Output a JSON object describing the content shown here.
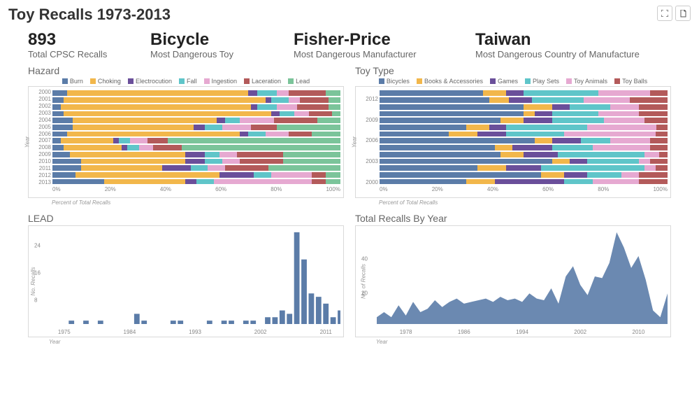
{
  "title": "Toy Recalls 1973-2013",
  "toolbar": {
    "expand_tip": "Expand",
    "export_tip": "Export"
  },
  "summary": [
    {
      "value": "893",
      "label": "Total CPSC Recalls"
    },
    {
      "value": "Bicycle",
      "label": "Most Dangerous Toy"
    },
    {
      "value": "Fisher-Price",
      "label": "Most Dangerous Manufacturer"
    },
    {
      "value": "Taiwan",
      "label": "Most Dangerous Country of Manufacture"
    }
  ],
  "colors": {
    "hazard": {
      "Burn": "#5b7ca8",
      "Choking": "#f2b74b",
      "Electrocution": "#6a4f9a",
      "Fall": "#5fc5c9",
      "Ingestion": "#e6a9d1",
      "Laceration": "#b35a5a",
      "Lead": "#7bc49a"
    },
    "toytype": {
      "Bicycles": "#5b7ca8",
      "Books & Accessories": "#f2b74b",
      "Games": "#6a4f9a",
      "Play Sets": "#5fc5c9",
      "Toy Animals": "#e6a9d1",
      "Toy Balls": "#b35a5a"
    },
    "bar_fill": "#5b7ca8",
    "area_fill": "#5b7ca8",
    "border": "#d9d9d9",
    "tick_text": "#888888",
    "panel_title": "#666666"
  },
  "hazard_chart": {
    "title": "Hazard",
    "type": "stacked-bar-100",
    "x_label": "Percent of Total Recalls",
    "y_label": "Year",
    "x_ticks": [
      "0%",
      "20%",
      "40%",
      "60%",
      "80%",
      "100%"
    ],
    "legend": [
      "Burn",
      "Choking",
      "Electrocution",
      "Fall",
      "Ingestion",
      "Laceration",
      "Lead"
    ],
    "rows": [
      {
        "year": "2000",
        "v": {
          "Burn": 5,
          "Choking": 63,
          "Electrocution": 3,
          "Fall": 7,
          "Ingestion": 4,
          "Laceration": 13,
          "Lead": 5
        }
      },
      {
        "year": "2001",
        "v": {
          "Burn": 4,
          "Choking": 70,
          "Electrocution": 2,
          "Fall": 6,
          "Ingestion": 4,
          "Laceration": 10,
          "Lead": 4
        }
      },
      {
        "year": "2002",
        "v": {
          "Burn": 3,
          "Choking": 66,
          "Electrocution": 2,
          "Fall": 7,
          "Ingestion": 7,
          "Laceration": 11,
          "Lead": 4
        }
      },
      {
        "year": "2003",
        "v": {
          "Burn": 4,
          "Choking": 72,
          "Electrocution": 3,
          "Fall": 5,
          "Ingestion": 5,
          "Laceration": 8,
          "Lead": 3
        }
      },
      {
        "year": "2004",
        "v": {
          "Burn": 7,
          "Choking": 50,
          "Electrocution": 3,
          "Fall": 5,
          "Ingestion": 12,
          "Laceration": 15,
          "Lead": 8
        }
      },
      {
        "year": "2005",
        "v": {
          "Burn": 7,
          "Choking": 42,
          "Electrocution": 4,
          "Fall": 6,
          "Ingestion": 10,
          "Laceration": 9,
          "Lead": 22
        }
      },
      {
        "year": "2006",
        "v": {
          "Burn": 5,
          "Choking": 60,
          "Electrocution": 3,
          "Fall": 6,
          "Ingestion": 8,
          "Laceration": 8,
          "Lead": 10
        }
      },
      {
        "year": "2007",
        "v": {
          "Burn": 3,
          "Choking": 18,
          "Electrocution": 2,
          "Fall": 4,
          "Ingestion": 6,
          "Laceration": 7,
          "Lead": 60
        }
      },
      {
        "year": "2008",
        "v": {
          "Burn": 4,
          "Choking": 20,
          "Electrocution": 2,
          "Fall": 4,
          "Ingestion": 5,
          "Laceration": 10,
          "Lead": 55
        }
      },
      {
        "year": "2009",
        "v": {
          "Burn": 6,
          "Choking": 40,
          "Electrocution": 7,
          "Fall": 5,
          "Ingestion": 6,
          "Laceration": 16,
          "Lead": 20
        }
      },
      {
        "year": "2010",
        "v": {
          "Burn": 10,
          "Choking": 36,
          "Electrocution": 7,
          "Fall": 6,
          "Ingestion": 6,
          "Laceration": 15,
          "Lead": 20
        }
      },
      {
        "year": "2011",
        "v": {
          "Burn": 10,
          "Choking": 28,
          "Electrocution": 10,
          "Fall": 6,
          "Ingestion": 6,
          "Laceration": 15,
          "Lead": 25
        }
      },
      {
        "year": "2012",
        "v": {
          "Burn": 8,
          "Choking": 50,
          "Electrocution": 12,
          "Fall": 6,
          "Ingestion": 14,
          "Laceration": 5,
          "Lead": 5
        }
      },
      {
        "year": "2013",
        "v": {
          "Burn": 18,
          "Choking": 28,
          "Electrocution": 4,
          "Fall": 6,
          "Ingestion": 34,
          "Laceration": 5,
          "Lead": 5
        }
      }
    ]
  },
  "toytype_chart": {
    "title": "Toy Type",
    "type": "stacked-bar-100",
    "x_label": "Percent of Total Recalls",
    "y_label": "Year",
    "x_ticks": [
      "0%",
      "20%",
      "40%",
      "60%",
      "80%",
      "100%"
    ],
    "legend": [
      "Bicycles",
      "Books & Accessories",
      "Games",
      "Play Sets",
      "Toy Animals",
      "Toy Balls"
    ],
    "rows": [
      {
        "year": "2013",
        "v": {
          "Bicycles": 36,
          "Books & Accessories": 8,
          "Games": 6,
          "Play Sets": 26,
          "Toy Animals": 18,
          "Toy Balls": 6
        }
      },
      {
        "year": "2012",
        "v": {
          "Bicycles": 38,
          "Books & Accessories": 7,
          "Games": 8,
          "Play Sets": 18,
          "Toy Animals": 16,
          "Toy Balls": 13
        }
      },
      {
        "year": "2011",
        "v": {
          "Bicycles": 50,
          "Books & Accessories": 10,
          "Games": 6,
          "Play Sets": 14,
          "Toy Animals": 10,
          "Toy Balls": 10
        }
      },
      {
        "year": "2010",
        "v": {
          "Bicycles": 50,
          "Books & Accessories": 4,
          "Games": 6,
          "Play Sets": 16,
          "Toy Animals": 14,
          "Toy Balls": 10
        }
      },
      {
        "year": "2009",
        "v": {
          "Bicycles": 42,
          "Books & Accessories": 8,
          "Games": 10,
          "Play Sets": 18,
          "Toy Animals": 14,
          "Toy Balls": 8
        }
      },
      {
        "year": "2008",
        "v": {
          "Bicycles": 30,
          "Books & Accessories": 8,
          "Games": 6,
          "Play Sets": 28,
          "Toy Animals": 24,
          "Toy Balls": 4
        }
      },
      {
        "year": "2007",
        "v": {
          "Bicycles": 24,
          "Books & Accessories": 10,
          "Games": 10,
          "Play Sets": 20,
          "Toy Animals": 32,
          "Toy Balls": 4
        }
      },
      {
        "year": "2006",
        "v": {
          "Bicycles": 54,
          "Books & Accessories": 6,
          "Games": 10,
          "Play Sets": 10,
          "Toy Animals": 14,
          "Toy Balls": 6
        }
      },
      {
        "year": "2005",
        "v": {
          "Bicycles": 40,
          "Books & Accessories": 6,
          "Games": 14,
          "Play Sets": 14,
          "Toy Animals": 20,
          "Toy Balls": 6
        }
      },
      {
        "year": "2004",
        "v": {
          "Bicycles": 42,
          "Books & Accessories": 8,
          "Games": 12,
          "Play Sets": 30,
          "Toy Animals": 5,
          "Toy Balls": 3
        }
      },
      {
        "year": "2003",
        "v": {
          "Bicycles": 60,
          "Books & Accessories": 6,
          "Games": 6,
          "Play Sets": 18,
          "Toy Animals": 4,
          "Toy Balls": 6
        }
      },
      {
        "year": "2002",
        "v": {
          "Bicycles": 34,
          "Books & Accessories": 10,
          "Games": 12,
          "Play Sets": 36,
          "Toy Animals": 4,
          "Toy Balls": 4
        }
      },
      {
        "year": "2001",
        "v": {
          "Bicycles": 56,
          "Books & Accessories": 8,
          "Games": 8,
          "Play Sets": 12,
          "Toy Animals": 6,
          "Toy Balls": 10
        }
      },
      {
        "year": "2000",
        "v": {
          "Bicycles": 30,
          "Books & Accessories": 10,
          "Games": 24,
          "Play Sets": 10,
          "Toy Animals": 16,
          "Toy Balls": 10
        }
      }
    ],
    "visible_row_labels": [
      "2012",
      "2009",
      "2006",
      "2003",
      "2000"
    ]
  },
  "lead_chart": {
    "title": "LEAD",
    "type": "bar",
    "y_label": "No. Recalls",
    "x_label": "Year",
    "y_ticks": [
      8,
      16,
      24
    ],
    "x_ticks": [
      1975,
      1984,
      1993,
      2002,
      2011
    ],
    "xlim": [
      1973,
      2013
    ],
    "ylim": [
      0,
      28
    ],
    "bars": [
      {
        "x": 1976,
        "y": 1
      },
      {
        "x": 1978,
        "y": 1
      },
      {
        "x": 1980,
        "y": 1
      },
      {
        "x": 1985,
        "y": 3
      },
      {
        "x": 1986,
        "y": 1
      },
      {
        "x": 1990,
        "y": 1
      },
      {
        "x": 1991,
        "y": 1
      },
      {
        "x": 1995,
        "y": 1
      },
      {
        "x": 1997,
        "y": 1
      },
      {
        "x": 1998,
        "y": 1
      },
      {
        "x": 2000,
        "y": 1
      },
      {
        "x": 2001,
        "y": 1
      },
      {
        "x": 2003,
        "y": 2
      },
      {
        "x": 2004,
        "y": 2
      },
      {
        "x": 2005,
        "y": 4
      },
      {
        "x": 2006,
        "y": 3
      },
      {
        "x": 2007,
        "y": 27
      },
      {
        "x": 2008,
        "y": 19
      },
      {
        "x": 2009,
        "y": 9
      },
      {
        "x": 2010,
        "y": 8
      },
      {
        "x": 2011,
        "y": 6
      },
      {
        "x": 2012,
        "y": 2
      },
      {
        "x": 2013,
        "y": 4
      }
    ]
  },
  "total_chart": {
    "title": "Total Recalls By Year",
    "type": "area",
    "y_label": "No. of Recalls",
    "x_label": "Year",
    "y_ticks": [
      20,
      40
    ],
    "x_ticks": [
      1978,
      1986,
      1994,
      2002,
      2010
    ],
    "xlim": [
      1974,
      2014
    ],
    "ylim": [
      0,
      56
    ],
    "points": [
      {
        "x": 1974,
        "y": 4
      },
      {
        "x": 1975,
        "y": 7
      },
      {
        "x": 1976,
        "y": 4
      },
      {
        "x": 1977,
        "y": 11
      },
      {
        "x": 1978,
        "y": 5
      },
      {
        "x": 1979,
        "y": 13
      },
      {
        "x": 1980,
        "y": 7
      },
      {
        "x": 1981,
        "y": 9
      },
      {
        "x": 1982,
        "y": 14
      },
      {
        "x": 1983,
        "y": 10
      },
      {
        "x": 1984,
        "y": 13
      },
      {
        "x": 1985,
        "y": 15
      },
      {
        "x": 1986,
        "y": 12
      },
      {
        "x": 1987,
        "y": 13
      },
      {
        "x": 1988,
        "y": 14
      },
      {
        "x": 1989,
        "y": 15
      },
      {
        "x": 1990,
        "y": 13
      },
      {
        "x": 1991,
        "y": 16
      },
      {
        "x": 1992,
        "y": 14
      },
      {
        "x": 1993,
        "y": 15
      },
      {
        "x": 1994,
        "y": 13
      },
      {
        "x": 1995,
        "y": 18
      },
      {
        "x": 1996,
        "y": 15
      },
      {
        "x": 1997,
        "y": 14
      },
      {
        "x": 1998,
        "y": 21
      },
      {
        "x": 1999,
        "y": 12
      },
      {
        "x": 2000,
        "y": 28
      },
      {
        "x": 2001,
        "y": 34
      },
      {
        "x": 2002,
        "y": 23
      },
      {
        "x": 2003,
        "y": 17
      },
      {
        "x": 2004,
        "y": 28
      },
      {
        "x": 2005,
        "y": 27
      },
      {
        "x": 2006,
        "y": 36
      },
      {
        "x": 2007,
        "y": 54
      },
      {
        "x": 2008,
        "y": 45
      },
      {
        "x": 2009,
        "y": 33
      },
      {
        "x": 2010,
        "y": 40
      },
      {
        "x": 2011,
        "y": 26
      },
      {
        "x": 2012,
        "y": 8
      },
      {
        "x": 2013,
        "y": 4
      },
      {
        "x": 2014,
        "y": 18
      }
    ]
  }
}
